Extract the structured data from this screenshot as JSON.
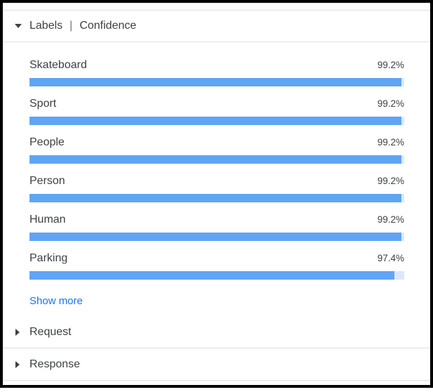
{
  "colors": {
    "bar_fill": "#5fa5f5",
    "bar_track": "#dbe8fb",
    "divider": "#e0e0e0",
    "text": "#3c4043",
    "link": "#1a73e8",
    "frame": "#000000"
  },
  "labels_section": {
    "state": "expanded",
    "title": "Labels",
    "separator": "|",
    "subtitle": "Confidence",
    "rows": [
      {
        "name": "Skateboard",
        "confidence": "99.2%",
        "value": 99.2
      },
      {
        "name": "Sport",
        "confidence": "99.2%",
        "value": 99.2
      },
      {
        "name": "People",
        "confidence": "99.2%",
        "value": 99.2
      },
      {
        "name": "Person",
        "confidence": "99.2%",
        "value": 99.2
      },
      {
        "name": "Human",
        "confidence": "99.2%",
        "value": 99.2
      },
      {
        "name": "Parking",
        "confidence": "97.4%",
        "value": 97.4
      }
    ],
    "show_more_label": "Show more"
  },
  "collapsed_sections": [
    {
      "title": "Request",
      "state": "collapsed"
    },
    {
      "title": "Response",
      "state": "collapsed"
    }
  ]
}
